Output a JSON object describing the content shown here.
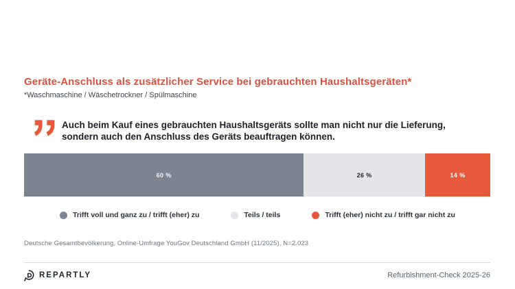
{
  "header": {
    "title": "Geräte-Anschluss als zusätzlicher Service bei gebrauchten Haushaltsgeräten*",
    "subtitle": "*Waschmaschine / Wäschetrockner / Spülmaschine"
  },
  "quote": {
    "text": "Auch beim Kauf eines gebrauchten Haushaltsgeräts sollte man nicht nur die Lieferung, sondern auch den Anschluss des Geräts beauftragen können.",
    "line1": "Auch beim Kauf eines gebrauchten Haushaltsgeräts sollte man nicht nur die Lieferung,",
    "line2": "sondern auch den Anschluss des Geräts beauftragen können."
  },
  "chart_data": {
    "type": "bar",
    "variant": "horizontal-stacked",
    "unit": "%",
    "axis_range": [
      0,
      100
    ],
    "grid": false,
    "legend_position": "bottom",
    "series": [
      {
        "name": "Trifft voll und ganz zu / trifft (eher) zu",
        "value": 60,
        "label": "60 %",
        "color": "#7c8491",
        "text_color": "#f4f5f7"
      },
      {
        "name": "Teils / teils",
        "value": 26,
        "label": "26 %",
        "color": "#e3e5e8",
        "text_color": "#23282e"
      },
      {
        "name": "Trifft (eher) nicht zu / trifft gar nicht zu",
        "value": 14,
        "label": "14 %",
        "color": "#e7593b",
        "text_color": "#ffffff"
      }
    ]
  },
  "source": "Deutsche Gesamtbevölkerung, Online-Umfrage YouGov Deutschland GmbH (11/2025), N=2.023",
  "footer": {
    "brand": "REPARTLY",
    "right_text": "Refurbishment-Check 2025-26"
  },
  "colors": {
    "accent": "#e7593b",
    "title": "#d9523d",
    "slate": "#7c8491",
    "light_gray": "#e3e5e8",
    "background": "#ffffff"
  }
}
